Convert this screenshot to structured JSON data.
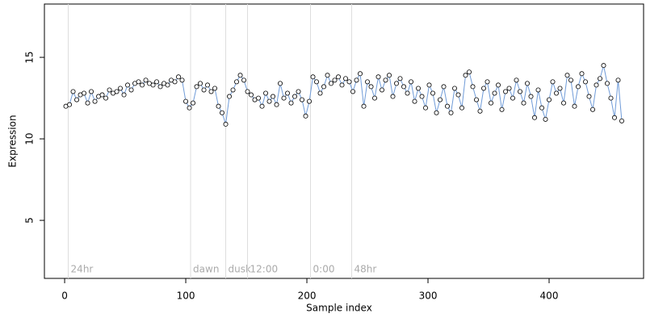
{
  "chart_data": {
    "type": "scatter",
    "xlabel": "Sample index",
    "ylabel": "Expression",
    "xlim": [
      -16.7,
      478
    ],
    "ylim": [
      1.44,
      18.27
    ],
    "xticks": [
      0,
      100,
      200,
      300,
      400
    ],
    "yticks": [
      5,
      10,
      15
    ],
    "point_color": "#ffffff",
    "line_color": "#6f9bd8",
    "markers": [
      {
        "x": 3,
        "label": "24hr"
      },
      {
        "x": 104,
        "label": "dawn"
      },
      {
        "x": 133,
        "label": "dusk"
      },
      {
        "x": 151,
        "label": "12:00"
      },
      {
        "x": 203,
        "label": "0:00"
      },
      {
        "x": 237,
        "label": "48hr"
      }
    ],
    "series": [
      {
        "x": [
          1,
          4,
          7,
          10,
          13,
          16,
          19,
          22,
          25,
          28,
          31,
          34,
          37,
          40,
          43,
          46,
          49,
          52,
          55,
          58,
          61,
          64,
          67,
          70,
          73,
          76,
          79,
          82,
          85,
          88,
          91,
          94,
          97,
          100,
          103,
          106,
          109,
          112,
          115,
          118,
          121,
          124,
          127,
          130,
          133,
          136,
          139,
          142,
          145,
          148,
          151,
          154,
          157,
          160,
          163,
          166,
          169,
          172,
          175,
          178,
          181,
          184,
          187,
          190,
          193,
          196,
          199,
          202,
          205,
          208,
          211,
          214,
          217,
          220,
          223,
          226,
          229,
          232,
          235,
          238,
          241,
          244,
          247,
          250,
          253,
          256,
          259,
          262,
          265,
          268,
          271,
          274,
          277,
          280,
          283,
          286,
          289,
          292,
          295,
          298,
          301,
          304,
          307,
          310,
          313,
          316,
          319,
          322,
          325,
          328,
          331,
          334,
          337,
          340,
          343,
          346,
          349,
          352,
          355,
          358,
          361,
          364,
          367,
          370,
          373,
          376,
          379,
          382,
          385,
          388,
          391,
          394,
          397,
          400,
          403,
          406,
          409,
          412,
          415,
          418,
          421,
          424,
          427,
          430,
          433,
          436,
          439,
          442,
          445,
          448,
          451,
          454,
          457,
          460
        ],
        "values": [
          12.0,
          12.1,
          12.9,
          12.4,
          12.7,
          12.8,
          12.2,
          12.9,
          12.3,
          12.6,
          12.7,
          12.5,
          13.0,
          12.8,
          12.9,
          13.1,
          12.7,
          13.3,
          13.0,
          13.4,
          13.5,
          13.3,
          13.6,
          13.4,
          13.3,
          13.5,
          13.2,
          13.4,
          13.3,
          13.6,
          13.5,
          13.8,
          13.6,
          12.3,
          11.9,
          12.2,
          13.2,
          13.4,
          13.0,
          13.3,
          12.9,
          13.1,
          12.0,
          11.6,
          10.9,
          12.6,
          13.0,
          13.5,
          13.9,
          13.6,
          12.9,
          12.7,
          12.4,
          12.5,
          12.0,
          12.8,
          12.3,
          12.6,
          12.1,
          13.4,
          12.5,
          12.8,
          12.2,
          12.6,
          12.9,
          12.4,
          11.4,
          12.3,
          13.8,
          13.5,
          12.8,
          13.2,
          13.9,
          13.4,
          13.6,
          13.8,
          13.3,
          13.7,
          13.5,
          12.9,
          13.6,
          14.0,
          12.0,
          13.5,
          13.2,
          12.5,
          13.8,
          13.0,
          13.6,
          13.9,
          12.6,
          13.4,
          13.7,
          13.2,
          12.8,
          13.5,
          12.3,
          13.1,
          12.6,
          11.9,
          13.3,
          12.8,
          11.6,
          12.4,
          13.2,
          12.0,
          11.6,
          13.1,
          12.7,
          11.9,
          13.9,
          14.1,
          13.2,
          12.4,
          11.7,
          13.1,
          13.5,
          12.2,
          12.8,
          13.3,
          11.8,
          12.9,
          13.1,
          12.5,
          13.6,
          12.9,
          12.2,
          13.4,
          12.6,
          11.3,
          13.0,
          11.9,
          11.2,
          12.4,
          13.5,
          12.8,
          13.1,
          12.2,
          13.9,
          13.6,
          12.0,
          13.2,
          14.0,
          13.5,
          12.6,
          11.8,
          13.3,
          13.7,
          14.5,
          13.4,
          12.5,
          11.3,
          13.6,
          11.1
        ]
      }
    ]
  }
}
